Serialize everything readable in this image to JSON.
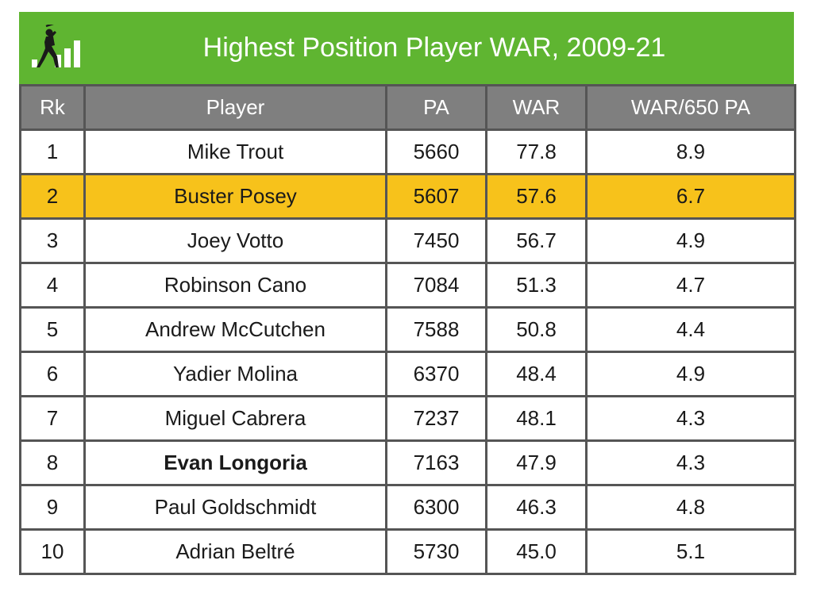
{
  "header": {
    "title": "Highest Position Player WAR, 2009-21",
    "logo_icon": "batter-bar-chart-logo",
    "background_color": "#5fb531"
  },
  "colors": {
    "header_row": "#7f7f7f",
    "highlight_row": "#f7c21b",
    "border": "#555555"
  },
  "chart_data": {
    "type": "table",
    "title": "Highest Position Player WAR, 2009-21",
    "columns": [
      "Rk",
      "Player",
      "PA",
      "WAR",
      "WAR/650 PA"
    ],
    "rows": [
      {
        "rk": "1",
        "player": "Mike Trout",
        "pa": "5660",
        "war": "77.8",
        "rate": "8.9"
      },
      {
        "rk": "2",
        "player": "Buster Posey",
        "pa": "5607",
        "war": "57.6",
        "rate": "6.7",
        "highlight": true
      },
      {
        "rk": "3",
        "player": "Joey Votto",
        "pa": "7450",
        "war": "56.7",
        "rate": "4.9"
      },
      {
        "rk": "4",
        "player": "Robinson Cano",
        "pa": "7084",
        "war": "51.3",
        "rate": "4.7"
      },
      {
        "rk": "5",
        "player": "Andrew McCutchen",
        "pa": "7588",
        "war": "50.8",
        "rate": "4.4"
      },
      {
        "rk": "6",
        "player": "Yadier Molina",
        "pa": "6370",
        "war": "48.4",
        "rate": "4.9"
      },
      {
        "rk": "7",
        "player": "Miguel Cabrera",
        "pa": "7237",
        "war": "48.1",
        "rate": "4.3"
      },
      {
        "rk": "8",
        "player": "Evan Longoria",
        "pa": "7163",
        "war": "47.9",
        "rate": "4.3",
        "bold": true
      },
      {
        "rk": "9",
        "player": "Paul Goldschmidt",
        "pa": "6300",
        "war": "46.3",
        "rate": "4.8"
      },
      {
        "rk": "10",
        "player": "Adrian Beltré",
        "pa": "5730",
        "war": "45.0",
        "rate": "5.1"
      }
    ]
  }
}
